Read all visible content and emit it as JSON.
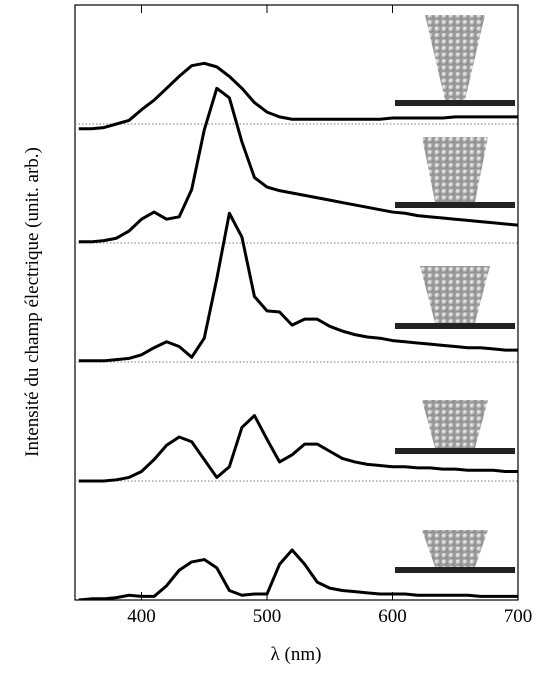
{
  "chart_data": {
    "type": "line",
    "xlabel": "λ   (nm)",
    "ylabel": "Intensité du champ électrique   (unit. arb.)",
    "x": [
      350,
      360,
      370,
      380,
      390,
      400,
      410,
      420,
      430,
      440,
      450,
      460,
      470,
      480,
      490,
      500,
      510,
      520,
      530,
      540,
      550,
      560,
      570,
      580,
      590,
      600,
      610,
      620,
      630,
      640,
      650,
      660,
      670,
      680,
      690,
      700
    ],
    "xlim": [
      347,
      700
    ],
    "xticks": [
      400,
      500,
      600,
      700
    ],
    "ylim": [
      0,
      5
    ],
    "yticks": [
      1,
      2,
      3,
      4
    ],
    "color": "#000000",
    "series": [
      {
        "values": [
          3.96,
          3.96,
          3.97,
          4.0,
          4.03,
          4.12,
          4.2,
          4.3,
          4.4,
          4.49,
          4.51,
          4.48,
          4.4,
          4.3,
          4.18,
          4.1,
          4.06,
          4.04,
          4.04,
          4.04,
          4.04,
          4.04,
          4.04,
          4.04,
          4.04,
          4.05,
          4.05,
          4.05,
          4.05,
          4.05,
          4.06,
          4.06,
          4.06,
          4.06,
          4.06,
          4.06
        ]
      },
      {
        "values": [
          3.01,
          3.01,
          3.02,
          3.04,
          3.1,
          3.2,
          3.26,
          3.2,
          3.22,
          3.45,
          3.95,
          4.3,
          4.22,
          3.85,
          3.55,
          3.47,
          3.44,
          3.42,
          3.4,
          3.38,
          3.36,
          3.34,
          3.32,
          3.3,
          3.28,
          3.26,
          3.25,
          3.23,
          3.22,
          3.21,
          3.2,
          3.19,
          3.18,
          3.17,
          3.16,
          3.15
        ]
      },
      {
        "values": [
          2.01,
          2.01,
          2.01,
          2.02,
          2.03,
          2.06,
          2.12,
          2.17,
          2.13,
          2.04,
          2.2,
          2.7,
          3.25,
          3.05,
          2.55,
          2.43,
          2.42,
          2.31,
          2.36,
          2.36,
          2.3,
          2.26,
          2.23,
          2.21,
          2.2,
          2.18,
          2.17,
          2.16,
          2.15,
          2.14,
          2.13,
          2.12,
          2.12,
          2.11,
          2.1,
          2.1
        ]
      },
      {
        "values": [
          1.0,
          1.0,
          1.0,
          1.01,
          1.03,
          1.08,
          1.18,
          1.3,
          1.37,
          1.33,
          1.18,
          1.03,
          1.12,
          1.45,
          1.55,
          1.35,
          1.16,
          1.22,
          1.31,
          1.31,
          1.25,
          1.19,
          1.16,
          1.14,
          1.13,
          1.12,
          1.12,
          1.11,
          1.11,
          1.1,
          1.1,
          1.09,
          1.09,
          1.09,
          1.08,
          1.08
        ]
      },
      {
        "values": [
          0,
          0.01,
          0.01,
          0.02,
          0.04,
          0.03,
          0.03,
          0.12,
          0.25,
          0.32,
          0.34,
          0.27,
          0.08,
          0.04,
          0.05,
          0.05,
          0.3,
          0.42,
          0.3,
          0.15,
          0.1,
          0.08,
          0.07,
          0.06,
          0.05,
          0.05,
          0.05,
          0.04,
          0.04,
          0.04,
          0.04,
          0.04,
          0.03,
          0.03,
          0.03,
          0.03
        ]
      }
    ]
  }
}
